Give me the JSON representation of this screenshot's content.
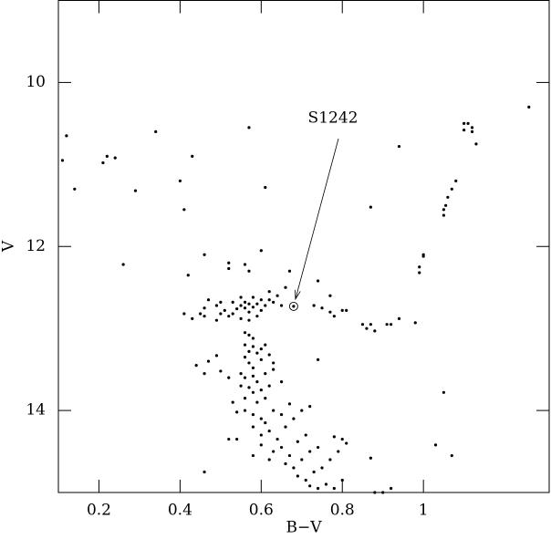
{
  "chart_data": {
    "type": "scatter",
    "xlabel": "B−V",
    "ylabel": "V",
    "xlim": [
      0.1,
      1.31
    ],
    "ylim": [
      9.0,
      15.0
    ],
    "y_inverted": true,
    "xticks": [
      0.2,
      0.4,
      0.6,
      0.8,
      1
    ],
    "yticks": [
      10,
      12,
      14
    ],
    "color": "#000000",
    "x": [
      1.1,
      1.11,
      1.1,
      1.12,
      1.12,
      1.13,
      1.26,
      1.08,
      1.07,
      1.06,
      1.055,
      1.05,
      1.05,
      1.0,
      1.0,
      0.99,
      0.99,
      0.94,
      0.87,
      1.05,
      1.03,
      1.07,
      0.11,
      0.12,
      0.14,
      0.21,
      0.22,
      0.24,
      0.29,
      0.34,
      0.4,
      0.41,
      0.43,
      0.57,
      0.61,
      0.26,
      0.6,
      0.46,
      0.42,
      0.52,
      0.52,
      0.56,
      0.57,
      0.67,
      0.74,
      0.73,
      0.75,
      0.77,
      0.78,
      0.77,
      0.8,
      0.81,
      0.85,
      0.86,
      0.87,
      0.88,
      0.91,
      0.92,
      0.94,
      0.98,
      0.74,
      0.41,
      0.43,
      0.45,
      0.46,
      0.46,
      0.47,
      0.49,
      0.5,
      0.5,
      0.51,
      0.52,
      0.53,
      0.53,
      0.55,
      0.55,
      0.56,
      0.56,
      0.57,
      0.57,
      0.58,
      0.58,
      0.59,
      0.59,
      0.6,
      0.6,
      0.61,
      0.62,
      0.62,
      0.63,
      0.64,
      0.65,
      0.66,
      0.57,
      0.55,
      0.49,
      0.54,
      0.56,
      0.57,
      0.58,
      0.56,
      0.57,
      0.58,
      0.59,
      0.6,
      0.61,
      0.56,
      0.57,
      0.58,
      0.6,
      0.62,
      0.55,
      0.56,
      0.58,
      0.59,
      0.61,
      0.63,
      0.55,
      0.57,
      0.58,
      0.6,
      0.62,
      0.65,
      0.56,
      0.59,
      0.61,
      0.47,
      0.49,
      0.44,
      0.46,
      0.5,
      0.52,
      0.63,
      0.53,
      0.54,
      0.56,
      0.58,
      0.6,
      0.61,
      0.63,
      0.65,
      0.67,
      0.58,
      0.6,
      0.62,
      0.64,
      0.66,
      0.68,
      0.7,
      0.72,
      0.6,
      0.63,
      0.65,
      0.67,
      0.69,
      0.71,
      0.58,
      0.62,
      0.66,
      0.68,
      0.7,
      0.72,
      0.74,
      0.69,
      0.71,
      0.73,
      0.75,
      0.76,
      0.74,
      0.78,
      0.8,
      0.72,
      0.77,
      0.79,
      0.81,
      0.78,
      0.8,
      0.87,
      0.52,
      0.54,
      0.46,
      0.88,
      0.92,
      0.9
    ],
    "values": [
      10.5,
      10.5,
      10.58,
      10.55,
      10.6,
      10.75,
      10.3,
      11.2,
      11.3,
      11.4,
      11.5,
      11.55,
      11.62,
      12.1,
      12.12,
      12.25,
      12.32,
      10.78,
      11.52,
      13.78,
      14.42,
      14.55,
      10.95,
      10.65,
      11.3,
      10.98,
      10.9,
      10.92,
      11.32,
      10.6,
      11.2,
      11.55,
      10.9,
      10.55,
      11.28,
      12.22,
      12.05,
      12.1,
      12.35,
      12.2,
      12.27,
      12.22,
      12.3,
      12.3,
      12.42,
      12.72,
      12.75,
      12.8,
      12.85,
      12.6,
      12.78,
      12.78,
      12.95,
      13.0,
      12.95,
      13.03,
      12.95,
      12.95,
      12.88,
      12.93,
      13.38,
      12.82,
      12.88,
      12.82,
      12.75,
      12.85,
      12.65,
      12.72,
      12.68,
      12.82,
      12.78,
      12.85,
      12.68,
      12.82,
      12.72,
      12.62,
      12.75,
      12.68,
      12.8,
      12.7,
      12.74,
      12.62,
      12.85,
      12.7,
      12.78,
      12.65,
      12.72,
      12.65,
      12.55,
      12.68,
      12.6,
      12.72,
      12.5,
      12.9,
      12.88,
      12.9,
      12.76,
      13.05,
      13.08,
      13.12,
      13.2,
      13.28,
      13.22,
      13.3,
      13.25,
      13.2,
      13.35,
      13.42,
      13.48,
      13.38,
      13.32,
      13.55,
      13.6,
      13.58,
      13.65,
      13.55,
      13.5,
      13.7,
      13.72,
      13.78,
      13.75,
      13.7,
      13.65,
      13.85,
      13.9,
      13.85,
      13.4,
      13.33,
      13.45,
      13.55,
      13.52,
      13.6,
      13.42,
      13.9,
      14.02,
      14.0,
      14.05,
      14.1,
      14.15,
      14.0,
      14.05,
      13.92,
      14.2,
      14.3,
      14.25,
      14.35,
      14.2,
      14.1,
      14.0,
      13.95,
      14.42,
      14.5,
      14.45,
      14.55,
      14.38,
      14.3,
      14.55,
      14.6,
      14.65,
      14.7,
      14.6,
      14.5,
      14.45,
      14.8,
      14.85,
      14.75,
      14.7,
      14.9,
      14.95,
      14.95,
      14.85,
      14.92,
      14.6,
      14.5,
      14.4,
      14.32,
      14.35,
      14.58,
      14.35,
      14.35,
      14.75,
      15.0,
      14.95,
      15.0
    ],
    "annotations": [
      {
        "text": "S1242",
        "x": 0.777,
        "y": 10.44,
        "point": [
          0.68,
          12.73
        ]
      }
    ]
  }
}
